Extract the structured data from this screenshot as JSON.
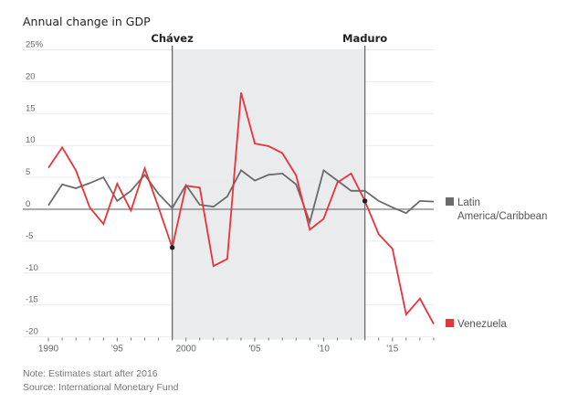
{
  "chart_data": {
    "type": "line",
    "title": "Annual change in GDP",
    "xlabel": "",
    "ylabel": "",
    "ylim": [
      -20,
      25
    ],
    "xlim": [
      1990,
      2018
    ],
    "grid": true,
    "y_ticks": [
      {
        "value": 25,
        "label": "25%"
      },
      {
        "value": 20,
        "label": "20"
      },
      {
        "value": 15,
        "label": "15"
      },
      {
        "value": 10,
        "label": "10"
      },
      {
        "value": 5,
        "label": "5"
      },
      {
        "value": 0,
        "label": "0"
      },
      {
        "value": -5,
        "label": "-5"
      },
      {
        "value": -10,
        "label": "-10"
      },
      {
        "value": -15,
        "label": "-15"
      },
      {
        "value": -20,
        "label": "-20"
      }
    ],
    "x_ticks": [
      {
        "value": 1990,
        "label": "1990"
      },
      {
        "value": 1995,
        "label": "'95"
      },
      {
        "value": 2000,
        "label": "2000"
      },
      {
        "value": 2005,
        "label": "'05"
      },
      {
        "value": 2010,
        "label": "'10"
      },
      {
        "value": 2015,
        "label": "'15"
      }
    ],
    "x": [
      1990,
      1991,
      1992,
      1993,
      1994,
      1995,
      1996,
      1997,
      1998,
      1999,
      2000,
      2001,
      2002,
      2003,
      2004,
      2005,
      2006,
      2007,
      2008,
      2009,
      2010,
      2011,
      2012,
      2013,
      2014,
      2015,
      2016,
      2017,
      2018
    ],
    "series": [
      {
        "name": "Latin America/Caribbean",
        "legend_line1": "Latin",
        "legend_line2": "America/Caribbean",
        "color": "#6b6b6b",
        "values": [
          0.6,
          3.9,
          3.3,
          4.1,
          5.0,
          1.3,
          2.9,
          5.4,
          2.4,
          0.2,
          3.8,
          0.7,
          0.4,
          2.0,
          6.1,
          4.5,
          5.4,
          5.6,
          3.9,
          -2.0,
          6.1,
          4.5,
          2.9,
          2.9,
          1.3,
          0.3,
          -0.6,
          1.3,
          1.2
        ]
      },
      {
        "name": "Venezuela",
        "color": "#e8323c",
        "values": [
          6.5,
          9.7,
          6.1,
          0.3,
          -2.3,
          4.0,
          -0.2,
          6.4,
          0.3,
          -6.0,
          3.7,
          3.4,
          -8.9,
          -7.8,
          18.3,
          10.3,
          9.9,
          8.8,
          5.3,
          -3.2,
          -1.5,
          4.2,
          5.6,
          1.3,
          -3.9,
          -6.2,
          -16.5,
          -14.0,
          -18.0
        ]
      }
    ],
    "shaded_region": {
      "from": 1999,
      "to": 2013,
      "color": "#eaebed"
    },
    "annotations": [
      {
        "label": "Chávez",
        "year": 1999,
        "marker_value": -6.0
      },
      {
        "label": "Maduro",
        "year": 2013,
        "marker_value": 1.3
      }
    ]
  },
  "footer": {
    "note": "Note: Estimates start after 2016",
    "source": "Source: International Monetary Fund"
  }
}
